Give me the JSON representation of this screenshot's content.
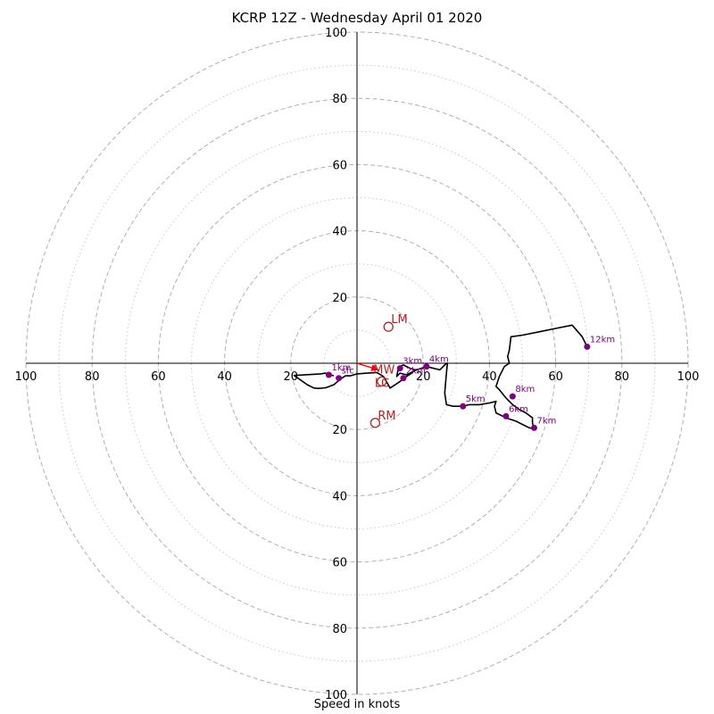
{
  "title": "KCRP 12Z - Wednesday April 01 2020",
  "xlabel": "Speed in knots",
  "colors": {
    "trace": "#000000",
    "height_marker": "#800080",
    "storm_motion": "#b22222",
    "mean_wind_arrow": "#ff0000",
    "grid": "#b0b0b0",
    "axis": "#000000"
  },
  "chart_data": {
    "type": "hodograph",
    "units": "knots",
    "ring_max": 100,
    "major_rings": [
      20,
      40,
      60,
      80,
      100
    ],
    "minor_rings": [
      10,
      30,
      50,
      70,
      90
    ],
    "tick_values": [
      20,
      40,
      60,
      80,
      100
    ],
    "axes": {
      "x_left_labels": [
        "100",
        "80",
        "60",
        "40",
        "20"
      ],
      "x_right_labels": [
        "20",
        "40",
        "60",
        "80",
        "100"
      ],
      "y_top_labels": [
        "100",
        "80",
        "60",
        "40",
        "20"
      ],
      "y_bottom_labels": [
        "20",
        "40",
        "60",
        "80",
        "100"
      ]
    },
    "hodograph_trace": [
      [
        -7,
        -3.8
      ],
      [
        -9.5,
        -3
      ],
      [
        -11,
        -3.2
      ],
      [
        -19,
        -3.7
      ],
      [
        -15,
        -6.5
      ],
      [
        -13,
        -7.5
      ],
      [
        -11.5,
        -7.6
      ],
      [
        -9.5,
        -7.4
      ],
      [
        -7,
        -6.5
      ],
      [
        -5,
        -4.8
      ],
      [
        -3.5,
        -3.8
      ],
      [
        -2,
        -3.8
      ],
      [
        0,
        -3.2
      ],
      [
        3,
        -3
      ],
      [
        6,
        -2.8
      ],
      [
        8,
        -4
      ],
      [
        10,
        -7.5
      ],
      [
        13,
        -5.5
      ],
      [
        15,
        -4
      ],
      [
        16.5,
        -3
      ],
      [
        17.5,
        -2
      ],
      [
        16,
        -1.5
      ],
      [
        14,
        -0.5
      ],
      [
        13,
        -1
      ],
      [
        12.5,
        -1.5
      ],
      [
        12,
        -4
      ],
      [
        13,
        -3
      ],
      [
        15,
        -3.5
      ],
      [
        18,
        -2
      ],
      [
        21,
        -1
      ],
      [
        25,
        -2
      ],
      [
        27,
        0
      ],
      [
        27.3,
        0
      ],
      [
        27,
        -3
      ],
      [
        26.5,
        -9
      ],
      [
        27,
        -12.5
      ],
      [
        29,
        -13
      ],
      [
        32,
        -13
      ],
      [
        34,
        -12.5
      ],
      [
        37,
        -12.5
      ],
      [
        40,
        -12
      ],
      [
        42,
        -11.5
      ],
      [
        41.5,
        -13
      ],
      [
        42,
        -15
      ],
      [
        45,
        -16.5
      ],
      [
        48,
        -17.5
      ],
      [
        50,
        -18.5
      ],
      [
        52,
        -19.5
      ],
      [
        53.5,
        -19.8
      ],
      [
        53,
        -18
      ],
      [
        53,
        -16.5
      ],
      [
        51,
        -15
      ],
      [
        49,
        -14
      ],
      [
        47,
        -12.5
      ],
      [
        45,
        -10.5
      ],
      [
        43,
        -8
      ],
      [
        42,
        -7
      ],
      [
        43,
        -4
      ],
      [
        44.5,
        -1
      ],
      [
        46,
        0
      ],
      [
        45.5,
        2
      ],
      [
        46,
        4
      ],
      [
        46.5,
        8
      ],
      [
        50,
        8.5
      ],
      [
        55,
        9.5
      ],
      [
        60,
        10.5
      ],
      [
        65,
        11.5
      ],
      [
        68,
        8
      ],
      [
        69.5,
        5
      ],
      [
        69,
        5
      ]
    ],
    "height_markers": [
      {
        "label": "1km",
        "u": -8.5,
        "v": -3.5
      },
      {
        "label": "2km",
        "u": 14,
        "v": -4.5
      },
      {
        "label": "3km",
        "u": 13,
        "v": -1.5
      },
      {
        "label": "4km",
        "u": 21,
        "v": -1
      },
      {
        "label": "5km",
        "u": 32,
        "v": -13
      },
      {
        "label": "6km",
        "u": 45,
        "v": -16
      },
      {
        "label": "7km",
        "u": 53.5,
        "v": -19.5
      },
      {
        "label": "8km",
        "u": 47,
        "v": -10
      },
      {
        "label": "12km",
        "u": 69.5,
        "v": 5
      }
    ],
    "surface_marker": {
      "label": "sfc",
      "u": -5.5,
      "v": -4.5
    },
    "storm_motions": [
      {
        "label": "LM",
        "u": 9.5,
        "v": 11
      },
      {
        "label": "RM",
        "u": 5.5,
        "v": -18
      },
      {
        "label": "MW",
        "u": 6,
        "v": -2
      },
      {
        "label": "LC",
        "u": 7.5,
        "v": -5.5
      }
    ],
    "mean_wind_vector": {
      "from": [
        0,
        0
      ],
      "to": [
        6.5,
        -2
      ]
    }
  }
}
